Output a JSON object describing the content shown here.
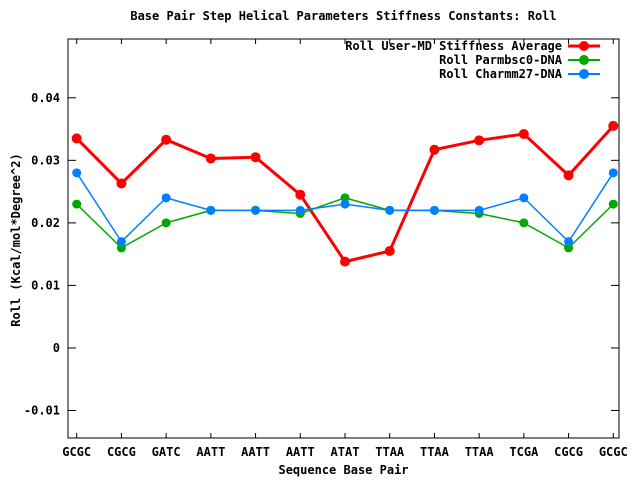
{
  "title": "Base Pair Step Helical Parameters Stiffness Constants: Roll",
  "chart_data": {
    "type": "line",
    "title": "Base Pair Step Helical Parameters Stiffness Constants: Roll",
    "xlabel": "Sequence Base Pair",
    "ylabel": "Roll (Kcal/mol*Degree^2)",
    "categories": [
      "GCGC",
      "CGCG",
      "GATC",
      "AATT",
      "AATT",
      "AATT",
      "ATAT",
      "TTAA",
      "TTAA",
      "TTAA",
      "TCGA",
      "CGCG",
      "GCGC"
    ],
    "y_ticks": [
      -0.01,
      0,
      0.01,
      0.02,
      0.03,
      0.04
    ],
    "y_tick_labels": [
      "-0.01",
      "0",
      "0.01",
      "0.02",
      "0.03",
      "0.04"
    ],
    "ylim": [
      -0.0144,
      0.0494
    ],
    "grid": false,
    "legend_position": "top-right-inside",
    "axis_color": "#000000",
    "series": [
      {
        "name": "Roll User-MD Stiffness Average",
        "color": "#ff0000",
        "marker": "circle",
        "line_width": 3,
        "marker_radius": 5,
        "values": [
          0.0335,
          0.0263,
          0.0333,
          0.0303,
          0.0305,
          0.0245,
          0.0138,
          0.0155,
          0.0317,
          0.0332,
          0.0342,
          0.0276,
          0.0355
        ]
      },
      {
        "name": "Roll Parmbsc0-DNA",
        "color": "#00a800",
        "marker": "circle",
        "line_width": 1.5,
        "marker_radius": 4.5,
        "values": [
          0.023,
          0.016,
          0.02,
          0.022,
          0.022,
          0.0215,
          0.024,
          0.022,
          0.022,
          0.0215,
          0.02,
          0.016,
          0.023
        ]
      },
      {
        "name": "Roll Charmm27-DNA",
        "color": "#0080ff",
        "marker": "circle",
        "line_width": 1.5,
        "marker_radius": 4.5,
        "values": [
          0.028,
          0.017,
          0.024,
          0.022,
          0.022,
          0.022,
          0.023,
          0.022,
          0.022,
          0.022,
          0.024,
          0.017,
          0.028
        ]
      }
    ]
  }
}
